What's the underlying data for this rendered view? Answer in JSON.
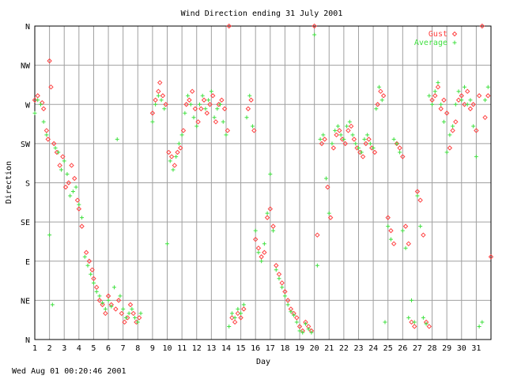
{
  "footer_timestamp": "Wed Aug 01 00:20:46 2001",
  "chart_data": {
    "type": "scatter",
    "title": "Wind Direction ending 31 July 2001",
    "xlabel": "Day",
    "ylabel": "Direction",
    "xlim": [
      1,
      32
    ],
    "ylim": [
      0,
      360
    ],
    "grid": true,
    "legend_position": "top-right",
    "x_ticks": [
      1,
      2,
      3,
      4,
      5,
      6,
      7,
      8,
      9,
      10,
      11,
      12,
      13,
      14,
      15,
      16,
      17,
      18,
      19,
      20,
      21,
      22,
      23,
      24,
      25,
      26,
      27,
      28,
      29,
      30,
      31
    ],
    "y_ticks": [
      {
        "value": 0,
        "label": "N"
      },
      {
        "value": 45,
        "label": "NE"
      },
      {
        "value": 90,
        "label": "E"
      },
      {
        "value": 135,
        "label": "SE"
      },
      {
        "value": 180,
        "label": "S"
      },
      {
        "value": 225,
        "label": "SW"
      },
      {
        "value": 270,
        "label": "W"
      },
      {
        "value": 315,
        "label": "NW"
      },
      {
        "value": 360,
        "label": "N"
      }
    ],
    "series": [
      {
        "name": "Gust",
        "marker": "diamond",
        "color": "#ff4040",
        "points": [
          [
            1.0,
            275
          ],
          [
            1.2,
            280
          ],
          [
            1.5,
            272
          ],
          [
            1.6,
            265
          ],
          [
            1.8,
            240
          ],
          [
            1.9,
            230
          ],
          [
            2.0,
            320
          ],
          [
            2.1,
            290
          ],
          [
            2.3,
            225
          ],
          [
            2.5,
            215
          ],
          [
            2.7,
            200
          ],
          [
            2.9,
            210
          ],
          [
            3.1,
            175
          ],
          [
            3.3,
            180
          ],
          [
            3.5,
            200
          ],
          [
            3.7,
            185
          ],
          [
            3.9,
            160
          ],
          [
            4.0,
            150
          ],
          [
            4.2,
            130
          ],
          [
            4.5,
            100
          ],
          [
            4.7,
            90
          ],
          [
            4.9,
            80
          ],
          [
            5.0,
            70
          ],
          [
            5.2,
            60
          ],
          [
            5.4,
            45
          ],
          [
            5.6,
            40
          ],
          [
            5.8,
            30
          ],
          [
            6.0,
            50
          ],
          [
            6.2,
            40
          ],
          [
            6.5,
            35
          ],
          [
            6.7,
            45
          ],
          [
            6.9,
            30
          ],
          [
            7.1,
            20
          ],
          [
            7.3,
            25
          ],
          [
            7.5,
            40
          ],
          [
            7.7,
            30
          ],
          [
            7.9,
            20
          ],
          [
            8.1,
            25
          ],
          [
            9.0,
            260
          ],
          [
            9.2,
            275
          ],
          [
            9.4,
            285
          ],
          [
            9.5,
            295
          ],
          [
            9.7,
            280
          ],
          [
            9.9,
            270
          ],
          [
            10.1,
            215
          ],
          [
            10.3,
            210
          ],
          [
            10.5,
            200
          ],
          [
            10.7,
            215
          ],
          [
            10.9,
            220
          ],
          [
            11.1,
            240
          ],
          [
            11.3,
            270
          ],
          [
            11.5,
            275
          ],
          [
            11.7,
            285
          ],
          [
            11.9,
            265
          ],
          [
            12.1,
            250
          ],
          [
            12.3,
            265
          ],
          [
            12.5,
            275
          ],
          [
            12.7,
            260
          ],
          [
            12.9,
            270
          ],
          [
            13.1,
            280
          ],
          [
            13.3,
            250
          ],
          [
            13.5,
            270
          ],
          [
            13.7,
            275
          ],
          [
            13.9,
            265
          ],
          [
            14.1,
            240
          ],
          [
            14.2,
            360
          ],
          [
            14.4,
            25
          ],
          [
            14.6,
            20
          ],
          [
            14.8,
            30
          ],
          [
            15.0,
            25
          ],
          [
            15.2,
            35
          ],
          [
            15.5,
            265
          ],
          [
            15.7,
            275
          ],
          [
            15.9,
            240
          ],
          [
            16.0,
            115
          ],
          [
            16.2,
            105
          ],
          [
            16.4,
            95
          ],
          [
            16.6,
            100
          ],
          [
            16.8,
            140
          ],
          [
            17.0,
            150
          ],
          [
            17.2,
            130
          ],
          [
            17.4,
            85
          ],
          [
            17.6,
            75
          ],
          [
            17.8,
            65
          ],
          [
            18.0,
            55
          ],
          [
            18.2,
            45
          ],
          [
            18.4,
            35
          ],
          [
            18.6,
            30
          ],
          [
            18.8,
            25
          ],
          [
            19.0,
            15
          ],
          [
            19.2,
            10
          ],
          [
            19.4,
            20
          ],
          [
            19.6,
            15
          ],
          [
            19.8,
            10
          ],
          [
            20.0,
            360
          ],
          [
            20.2,
            120
          ],
          [
            20.5,
            225
          ],
          [
            20.7,
            230
          ],
          [
            20.9,
            175
          ],
          [
            21.1,
            140
          ],
          [
            21.3,
            220
          ],
          [
            21.5,
            235
          ],
          [
            21.7,
            240
          ],
          [
            21.9,
            230
          ],
          [
            22.1,
            225
          ],
          [
            22.3,
            240
          ],
          [
            22.5,
            245
          ],
          [
            22.7,
            230
          ],
          [
            22.9,
            220
          ],
          [
            23.1,
            215
          ],
          [
            23.3,
            210
          ],
          [
            23.5,
            225
          ],
          [
            23.7,
            230
          ],
          [
            23.9,
            220
          ],
          [
            24.1,
            215
          ],
          [
            24.3,
            270
          ],
          [
            24.5,
            285
          ],
          [
            24.7,
            280
          ],
          [
            25.0,
            140
          ],
          [
            25.2,
            125
          ],
          [
            25.4,
            110
          ],
          [
            25.6,
            225
          ],
          [
            25.8,
            220
          ],
          [
            26.0,
            210
          ],
          [
            26.2,
            130
          ],
          [
            26.4,
            110
          ],
          [
            26.6,
            20
          ],
          [
            26.8,
            15
          ],
          [
            27.0,
            170
          ],
          [
            27.2,
            160
          ],
          [
            27.4,
            120
          ],
          [
            27.6,
            20
          ],
          [
            27.8,
            15
          ],
          [
            28.0,
            275
          ],
          [
            28.2,
            280
          ],
          [
            28.4,
            290
          ],
          [
            28.6,
            265
          ],
          [
            28.8,
            275
          ],
          [
            29.0,
            260
          ],
          [
            29.2,
            220
          ],
          [
            29.4,
            240
          ],
          [
            29.6,
            250
          ],
          [
            29.8,
            275
          ],
          [
            30.0,
            280
          ],
          [
            30.2,
            270
          ],
          [
            30.4,
            285
          ],
          [
            30.6,
            265
          ],
          [
            30.8,
            270
          ],
          [
            31.0,
            240
          ],
          [
            31.2,
            280
          ],
          [
            31.4,
            360
          ],
          [
            31.6,
            255
          ],
          [
            31.8,
            280
          ],
          [
            32.0,
            95
          ]
        ]
      },
      {
        "name": "Average",
        "marker": "plus",
        "color": "#40e040",
        "points": [
          [
            1.0,
            260
          ],
          [
            1.2,
            275
          ],
          [
            1.4,
            270
          ],
          [
            1.6,
            250
          ],
          [
            1.8,
            235
          ],
          [
            2.0,
            120
          ],
          [
            2.2,
            40
          ],
          [
            2.4,
            220
          ],
          [
            2.6,
            215
          ],
          [
            2.8,
            195
          ],
          [
            3.0,
            205
          ],
          [
            3.2,
            190
          ],
          [
            3.4,
            165
          ],
          [
            3.6,
            170
          ],
          [
            3.8,
            175
          ],
          [
            4.0,
            155
          ],
          [
            4.2,
            140
          ],
          [
            4.4,
            95
          ],
          [
            4.6,
            85
          ],
          [
            4.8,
            75
          ],
          [
            5.0,
            65
          ],
          [
            5.2,
            55
          ],
          [
            5.4,
            50
          ],
          [
            5.6,
            42
          ],
          [
            5.8,
            35
          ],
          [
            6.0,
            45
          ],
          [
            6.2,
            38
          ],
          [
            6.4,
            60
          ],
          [
            6.6,
            230
          ],
          [
            6.8,
            50
          ],
          [
            7.0,
            35
          ],
          [
            7.2,
            25
          ],
          [
            7.4,
            30
          ],
          [
            7.6,
            35
          ],
          [
            7.8,
            25
          ],
          [
            8.0,
            20
          ],
          [
            8.2,
            30
          ],
          [
            9.0,
            250
          ],
          [
            9.2,
            270
          ],
          [
            9.4,
            280
          ],
          [
            9.6,
            275
          ],
          [
            9.8,
            265
          ],
          [
            10.0,
            110
          ],
          [
            10.2,
            205
          ],
          [
            10.4,
            195
          ],
          [
            10.6,
            210
          ],
          [
            10.8,
            225
          ],
          [
            11.0,
            235
          ],
          [
            11.2,
            260
          ],
          [
            11.4,
            280
          ],
          [
            11.6,
            270
          ],
          [
            11.8,
            255
          ],
          [
            12.0,
            245
          ],
          [
            12.2,
            270
          ],
          [
            12.4,
            280
          ],
          [
            12.6,
            265
          ],
          [
            12.8,
            275
          ],
          [
            13.0,
            285
          ],
          [
            13.2,
            255
          ],
          [
            13.4,
            265
          ],
          [
            13.6,
            270
          ],
          [
            13.8,
            250
          ],
          [
            14.0,
            235
          ],
          [
            14.2,
            15
          ],
          [
            14.4,
            30
          ],
          [
            14.6,
            25
          ],
          [
            14.8,
            35
          ],
          [
            15.0,
            30
          ],
          [
            15.2,
            40
          ],
          [
            15.4,
            255
          ],
          [
            15.6,
            280
          ],
          [
            15.8,
            245
          ],
          [
            16.0,
            125
          ],
          [
            16.2,
            100
          ],
          [
            16.4,
            90
          ],
          [
            16.6,
            110
          ],
          [
            16.8,
            145
          ],
          [
            17.0,
            190
          ],
          [
            17.2,
            125
          ],
          [
            17.4,
            80
          ],
          [
            17.6,
            70
          ],
          [
            17.8,
            60
          ],
          [
            18.0,
            50
          ],
          [
            18.2,
            40
          ],
          [
            18.4,
            32
          ],
          [
            18.6,
            28
          ],
          [
            18.8,
            20
          ],
          [
            19.0,
            10
          ],
          [
            19.2,
            8
          ],
          [
            19.4,
            18
          ],
          [
            19.6,
            12
          ],
          [
            19.8,
            8
          ],
          [
            20.0,
            350
          ],
          [
            20.2,
            85
          ],
          [
            20.4,
            230
          ],
          [
            20.6,
            235
          ],
          [
            20.8,
            185
          ],
          [
            21.0,
            145
          ],
          [
            21.2,
            225
          ],
          [
            21.4,
            240
          ],
          [
            21.6,
            245
          ],
          [
            21.8,
            235
          ],
          [
            22.0,
            230
          ],
          [
            22.2,
            245
          ],
          [
            22.4,
            250
          ],
          [
            22.6,
            235
          ],
          [
            22.8,
            225
          ],
          [
            23.0,
            220
          ],
          [
            23.2,
            215
          ],
          [
            23.4,
            230
          ],
          [
            23.6,
            235
          ],
          [
            23.8,
            225
          ],
          [
            24.0,
            220
          ],
          [
            24.2,
            265
          ],
          [
            24.4,
            290
          ],
          [
            24.6,
            275
          ],
          [
            24.8,
            20
          ],
          [
            25.0,
            130
          ],
          [
            25.2,
            115
          ],
          [
            25.4,
            230
          ],
          [
            25.6,
            225
          ],
          [
            25.8,
            215
          ],
          [
            26.0,
            125
          ],
          [
            26.2,
            105
          ],
          [
            26.4,
            25
          ],
          [
            26.6,
            45
          ],
          [
            26.8,
            20
          ],
          [
            27.0,
            165
          ],
          [
            27.2,
            130
          ],
          [
            27.4,
            25
          ],
          [
            27.6,
            18
          ],
          [
            27.8,
            280
          ],
          [
            28.0,
            270
          ],
          [
            28.2,
            285
          ],
          [
            28.4,
            295
          ],
          [
            28.6,
            270
          ],
          [
            28.8,
            250
          ],
          [
            29.0,
            215
          ],
          [
            29.2,
            235
          ],
          [
            29.4,
            245
          ],
          [
            29.6,
            270
          ],
          [
            29.8,
            285
          ],
          [
            30.0,
            275
          ],
          [
            30.2,
            290
          ],
          [
            30.4,
            270
          ],
          [
            30.6,
            275
          ],
          [
            30.8,
            245
          ],
          [
            31.0,
            210
          ],
          [
            31.2,
            15
          ],
          [
            31.4,
            20
          ],
          [
            31.6,
            275
          ],
          [
            31.8,
            290
          ]
        ]
      }
    ]
  }
}
